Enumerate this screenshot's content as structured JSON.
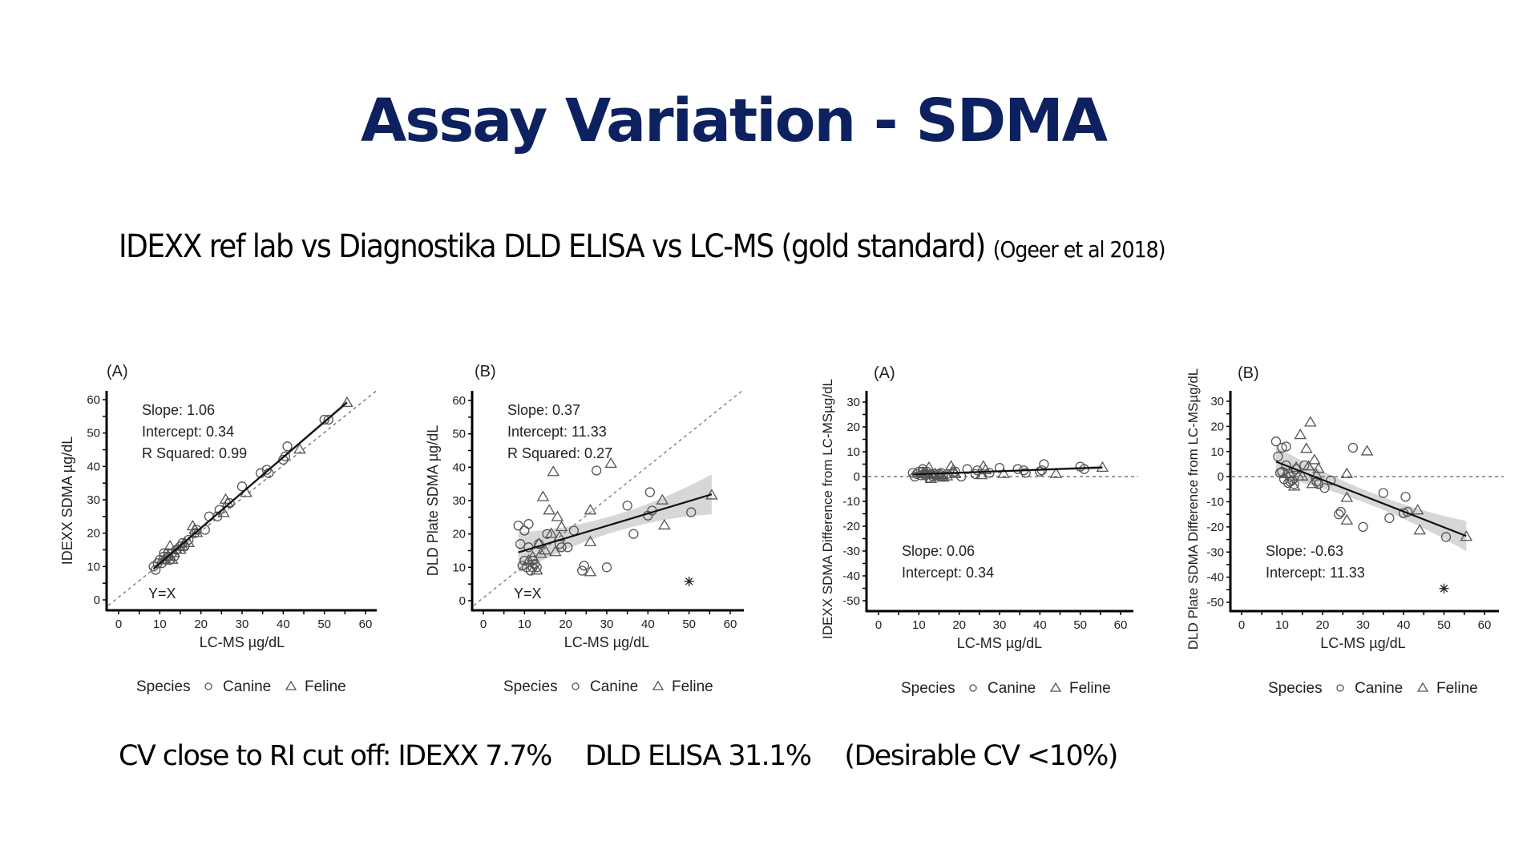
{
  "slide": {
    "title": "Assay Variation - SDMA",
    "subtitle": "IDEXX ref lab vs Diagnostika DLD ELISA vs LC-MS (gold standard)",
    "citation": "(Ogeer et al 2018)",
    "bottom_note": {
      "part1": "CV close to RI cut off: IDEXX 7.7%",
      "part2": "DLD ELISA 31.1%",
      "part3": "(Desirable CV <10%)"
    }
  },
  "colors": {
    "title": "#0d2160",
    "marker": "#555555",
    "ci_band": "#d0d0d0",
    "reference_line": "#777777"
  },
  "chart_data": [
    {
      "type": "scatter",
      "panel_label": "(A)",
      "xlabel": "LC-MS µg/dL",
      "ylabel": "IDEXX SDMA µg/dL",
      "xlim": [
        0,
        60
      ],
      "ylim": [
        0,
        60
      ],
      "xticks": [
        "0",
        "10",
        "20",
        "30",
        "40",
        "50",
        "60"
      ],
      "yticks": [
        "0",
        "10",
        "20",
        "30",
        "40",
        "50",
        "60"
      ],
      "annotations": [
        "Slope: 1.06",
        "Intercept: 0.34",
        "R Squared: 0.99"
      ],
      "reference_label": "Y=X",
      "reference_line": "y=x",
      "fit": {
        "slope": 1.06,
        "intercept": 0.34,
        "x_range": [
          8.5,
          55.5
        ],
        "ci_halfwidth": [
          0.4,
          0.8
        ]
      },
      "legend": {
        "title": "Species",
        "entries": [
          "Canine",
          "Feline"
        ],
        "placement": "bottom"
      },
      "series": [
        {
          "name": "Canine",
          "marker": "circle",
          "points": [
            [
              8.5,
              10
            ],
            [
              9,
              9
            ],
            [
              9.5,
              11
            ],
            [
              10,
              12
            ],
            [
              10.5,
              11
            ],
            [
              11,
              13
            ],
            [
              11,
              14
            ],
            [
              11.5,
              12
            ],
            [
              12,
              13
            ],
            [
              12,
              14
            ],
            [
              12.5,
              12
            ],
            [
              13,
              14
            ],
            [
              13.5,
              13
            ],
            [
              14,
              15
            ],
            [
              15,
              16
            ],
            [
              15.5,
              17
            ],
            [
              16,
              16
            ],
            [
              17,
              18
            ],
            [
              18.5,
              20
            ],
            [
              19,
              21
            ],
            [
              21,
              21
            ],
            [
              22,
              25
            ],
            [
              24,
              25
            ],
            [
              24.5,
              27
            ],
            [
              27,
              29
            ],
            [
              30,
              34
            ],
            [
              34.5,
              38
            ],
            [
              36,
              39
            ],
            [
              36.5,
              38
            ],
            [
              40,
              42
            ],
            [
              40.5,
              43
            ],
            [
              41,
              46
            ],
            [
              50,
              54
            ],
            [
              51,
              54
            ]
          ]
        },
        {
          "name": "Feline",
          "marker": "triangle",
          "points": [
            [
              11,
              12
            ],
            [
              12,
              13
            ],
            [
              12.5,
              16
            ],
            [
              13,
              12
            ],
            [
              13.5,
              14
            ],
            [
              14,
              15
            ],
            [
              15,
              15
            ],
            [
              15.5,
              16
            ],
            [
              16,
              17
            ],
            [
              17,
              17
            ],
            [
              18,
              22
            ],
            [
              18.5,
              21
            ],
            [
              19,
              20
            ],
            [
              25.5,
              26
            ],
            [
              26,
              30
            ],
            [
              26.5,
              29
            ],
            [
              31,
              32
            ],
            [
              44,
              45
            ],
            [
              55.5,
              59
            ]
          ]
        }
      ]
    },
    {
      "type": "scatter",
      "panel_label": "(B)",
      "xlabel": "LC-MS µg/dL",
      "ylabel": "DLD Plate SDMA µg/dL",
      "xlim": [
        0,
        60
      ],
      "ylim": [
        0,
        60
      ],
      "xticks": [
        "0",
        "10",
        "20",
        "30",
        "40",
        "50",
        "60"
      ],
      "yticks": [
        "0",
        "10",
        "20",
        "30",
        "40",
        "50",
        "60"
      ],
      "annotations": [
        "Slope: 0.37",
        "Intercept: 11.33",
        "R Squared: 0.27"
      ],
      "reference_label": "Y=X",
      "reference_line": "y=x",
      "fit": {
        "slope": 0.37,
        "intercept": 11.33,
        "x_range": [
          8.5,
          55.5
        ],
        "ci_halfwidth": [
          2.5,
          6
        ]
      },
      "legend": {
        "title": "Species",
        "entries": [
          "Canine",
          "Feline"
        ],
        "placement": "bottom"
      },
      "outlier": {
        "marker": "asterisk",
        "x": 50,
        "y": 5.8
      },
      "series": [
        {
          "name": "Canine",
          "marker": "circle",
          "points": [
            [
              8.5,
              22.5
            ],
            [
              9,
              17
            ],
            [
              9.5,
              10.5
            ],
            [
              10,
              21
            ],
            [
              10,
              12
            ],
            [
              10.5,
              10
            ],
            [
              11,
              23
            ],
            [
              11,
              16
            ],
            [
              11.5,
              9
            ],
            [
              12,
              12
            ],
            [
              12,
              10
            ],
            [
              12.5,
              11
            ],
            [
              13,
              10
            ],
            [
              13.5,
              17
            ],
            [
              15.5,
              20
            ],
            [
              18.5,
              17
            ],
            [
              19,
              16
            ],
            [
              20.5,
              16
            ],
            [
              22,
              21
            ],
            [
              24,
              9
            ],
            [
              24.5,
              10.5
            ],
            [
              27.5,
              39
            ],
            [
              30,
              10
            ],
            [
              35,
              28.5
            ],
            [
              36.5,
              20
            ],
            [
              40,
              25.5
            ],
            [
              40.5,
              32.5
            ],
            [
              41,
              27
            ],
            [
              50.5,
              26.5
            ]
          ]
        },
        {
          "name": "Feline",
          "marker": "triangle",
          "points": [
            [
              11,
              12
            ],
            [
              12,
              13
            ],
            [
              13,
              9
            ],
            [
              13.5,
              17
            ],
            [
              14,
              14
            ],
            [
              14.5,
              31
            ],
            [
              15,
              15
            ],
            [
              16,
              27
            ],
            [
              16.5,
              20
            ],
            [
              17,
              38.5
            ],
            [
              17.5,
              14.5
            ],
            [
              18,
              25
            ],
            [
              18.5,
              19
            ],
            [
              19,
              22
            ],
            [
              26,
              27
            ],
            [
              26,
              17.5
            ],
            [
              26,
              8.5
            ],
            [
              31,
              41
            ],
            [
              43.5,
              30
            ],
            [
              44,
              22.5
            ],
            [
              55.5,
              31.5
            ]
          ]
        }
      ]
    },
    {
      "type": "scatter",
      "panel_label": "(A)",
      "xlabel": "LC-MS µg/dL",
      "ylabel": "IDEXX SDMA Difference from LC-MSµg/dL",
      "xlim": [
        0,
        60
      ],
      "ylim": [
        -50,
        30
      ],
      "xticks": [
        "0",
        "10",
        "20",
        "30",
        "40",
        "50",
        "60"
      ],
      "yticks": [
        "-50",
        "-40",
        "-30",
        "-20",
        "-10",
        "0",
        "10",
        "20",
        "30"
      ],
      "annotations": [
        "Slope: 0.06",
        "Intercept: 0.34"
      ],
      "reference_line": "y=0",
      "fit": {
        "slope": 0.06,
        "intercept": 0.34,
        "x_range": [
          8.5,
          55.5
        ],
        "ci_halfwidth": [
          0.4,
          0.8
        ]
      },
      "legend": {
        "title": "Species",
        "entries": [
          "Canine",
          "Feline"
        ],
        "placement": "bottom"
      },
      "series": [
        {
          "name": "Canine",
          "marker": "circle",
          "points": [
            [
              8.5,
              1.5
            ],
            [
              9,
              0
            ],
            [
              9.5,
              1
            ],
            [
              10,
              2
            ],
            [
              10.5,
              0.5
            ],
            [
              11,
              2
            ],
            [
              11,
              3
            ],
            [
              11.5,
              0.5
            ],
            [
              12,
              1
            ],
            [
              12,
              2
            ],
            [
              12.5,
              -0.5
            ],
            [
              13,
              1
            ],
            [
              13.5,
              0
            ],
            [
              14,
              1
            ],
            [
              15,
              1
            ],
            [
              15.5,
              1.5
            ],
            [
              16,
              0
            ],
            [
              17,
              1
            ],
            [
              18.5,
              1.5
            ],
            [
              19,
              2
            ],
            [
              20.5,
              0
            ],
            [
              22,
              3
            ],
            [
              24,
              1
            ],
            [
              24.5,
              2.5
            ],
            [
              27.5,
              1.5
            ],
            [
              30,
              3.5
            ],
            [
              34.5,
              3
            ],
            [
              36,
              2.5
            ],
            [
              36.5,
              1.5
            ],
            [
              40,
              2
            ],
            [
              40.5,
              2.5
            ],
            [
              41,
              5
            ],
            [
              50,
              4
            ],
            [
              51,
              3
            ]
          ]
        },
        {
          "name": "Feline",
          "marker": "triangle",
          "points": [
            [
              11,
              1
            ],
            [
              12,
              1
            ],
            [
              12.5,
              3.5
            ],
            [
              13,
              -1
            ],
            [
              13.5,
              0.5
            ],
            [
              14,
              1
            ],
            [
              15,
              0
            ],
            [
              15.5,
              0.5
            ],
            [
              16,
              -0.5
            ],
            [
              17,
              0
            ],
            [
              18,
              4
            ],
            [
              18.5,
              2.5
            ],
            [
              19,
              1
            ],
            [
              25.5,
              0.5
            ],
            [
              26,
              4
            ],
            [
              26.5,
              2.5
            ],
            [
              31,
              1
            ],
            [
              44,
              1
            ],
            [
              55.5,
              3.5
            ]
          ]
        }
      ]
    },
    {
      "type": "scatter",
      "panel_label": "(B)",
      "xlabel": "LC-MS µg/dL",
      "ylabel": "DLD Plate SDMA Difference from LC-MSµg/dL",
      "xlim": [
        0,
        60
      ],
      "ylim": [
        -50,
        30
      ],
      "xticks": [
        "0",
        "10",
        "20",
        "30",
        "40",
        "50",
        "60"
      ],
      "yticks": [
        "-50",
        "-40",
        "-30",
        "-20",
        "-10",
        "0",
        "10",
        "20",
        "30"
      ],
      "annotations": [
        "Slope: -0.63",
        "Intercept: 11.33"
      ],
      "reference_line": "y=0",
      "fit": {
        "slope": -0.63,
        "intercept": 11.33,
        "x_range": [
          8.5,
          55.5
        ],
        "ci_halfwidth": [
          2.5,
          6
        ]
      },
      "legend": {
        "title": "Species",
        "entries": [
          "Canine",
          "Feline"
        ],
        "placement": "bottom"
      },
      "outlier": {
        "marker": "asterisk",
        "x": 50,
        "y": -44.5
      },
      "series": [
        {
          "name": "Canine",
          "marker": "circle",
          "points": [
            [
              8.5,
              14
            ],
            [
              9,
              8
            ],
            [
              9.5,
              1.5
            ],
            [
              10,
              11.5
            ],
            [
              10,
              2
            ],
            [
              10.5,
              -1
            ],
            [
              11,
              12
            ],
            [
              11,
              4.5
            ],
            [
              11.5,
              -2.5
            ],
            [
              12,
              0
            ],
            [
              12,
              -2
            ],
            [
              12.5,
              -1.5
            ],
            [
              13,
              -3
            ],
            [
              13.5,
              3
            ],
            [
              15.5,
              4.5
            ],
            [
              18.5,
              -2
            ],
            [
              19,
              -3
            ],
            [
              20.5,
              -4.5
            ],
            [
              22,
              -1.5
            ],
            [
              24,
              -15
            ],
            [
              24.5,
              -14
            ],
            [
              27.5,
              11.5
            ],
            [
              30,
              -20
            ],
            [
              35,
              -6.5
            ],
            [
              36.5,
              -16.5
            ],
            [
              40,
              -14.5
            ],
            [
              40.5,
              -8
            ],
            [
              41,
              -14
            ],
            [
              50.5,
              -24
            ]
          ]
        },
        {
          "name": "Feline",
          "marker": "triangle",
          "points": [
            [
              11,
              1
            ],
            [
              12,
              1
            ],
            [
              13,
              -4
            ],
            [
              13.5,
              3.5
            ],
            [
              14,
              0
            ],
            [
              14.5,
              16.5
            ],
            [
              15,
              0
            ],
            [
              16,
              11
            ],
            [
              16.5,
              4
            ],
            [
              17,
              21.5
            ],
            [
              17.5,
              -3
            ],
            [
              18,
              6.5
            ],
            [
              18.5,
              0.5
            ],
            [
              19,
              3
            ],
            [
              26,
              1
            ],
            [
              26,
              -8.5
            ],
            [
              26,
              -17.5
            ],
            [
              31,
              10
            ],
            [
              43.5,
              -13.5
            ],
            [
              44,
              -21.5
            ],
            [
              55.5,
              -24
            ]
          ]
        }
      ]
    }
  ]
}
